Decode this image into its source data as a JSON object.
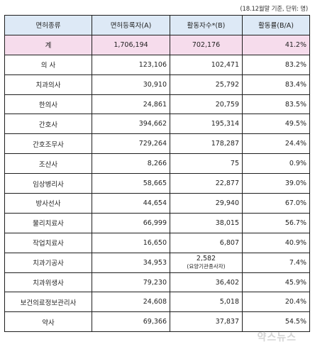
{
  "note": "(18.12월말 기준, 단위: 명)",
  "headers": [
    "면허종류",
    "면허등록자(A)",
    "활동자수*(B)",
    "활동률(B/A)"
  ],
  "total": {
    "kind": "계",
    "registered": "1,706,194",
    "active": "702,176",
    "rate": "41.2%"
  },
  "rows": [
    {
      "kind": "의 사",
      "registered": "123,106",
      "active": "102,471",
      "rate": "83.2%"
    },
    {
      "kind": "치과의사",
      "registered": "30,910",
      "active": "25,792",
      "rate": "83.4%"
    },
    {
      "kind": "한의사",
      "registered": "24,861",
      "active": "20,759",
      "rate": "83.5%"
    },
    {
      "kind": "간호사",
      "registered": "394,662",
      "active": "195,314",
      "rate": "49.5%"
    },
    {
      "kind": "간호조무사",
      "registered": "729,264",
      "active": "178,287",
      "rate": "24.4%"
    },
    {
      "kind": "조산사",
      "registered": "8,266",
      "active": "75",
      "rate": "0.9%"
    },
    {
      "kind": "임상병리사",
      "registered": "58,665",
      "active": "22,877",
      "rate": "39.0%"
    },
    {
      "kind": "방사선사",
      "registered": "44,654",
      "active": "29,940",
      "rate": "67.0%"
    },
    {
      "kind": "물리치료사",
      "registered": "66,999",
      "active": "38,015",
      "rate": "56.7%"
    },
    {
      "kind": "작업치료사",
      "registered": "16,650",
      "active": "6,807",
      "rate": "40.9%"
    },
    {
      "kind": "치과기공사",
      "registered": "34,953",
      "active": "2,582",
      "active_note": "(요양기관종사자)",
      "rate": "7.4%"
    },
    {
      "kind": "치과위생사",
      "registered": "79,230",
      "active": "36,402",
      "rate": "45.9%"
    },
    {
      "kind": "보건의료정보관리사",
      "registered": "24,608",
      "active": "5,018",
      "rate": "20.4%"
    },
    {
      "kind": "약사",
      "registered": "69,366",
      "active": "37,837",
      "rate": "54.5%"
    }
  ],
  "watermark": "약스뉴스",
  "colors": {
    "header_bg": "#dde9f6",
    "total_bg": "#f6dcec",
    "border": "#1e1e1e"
  }
}
